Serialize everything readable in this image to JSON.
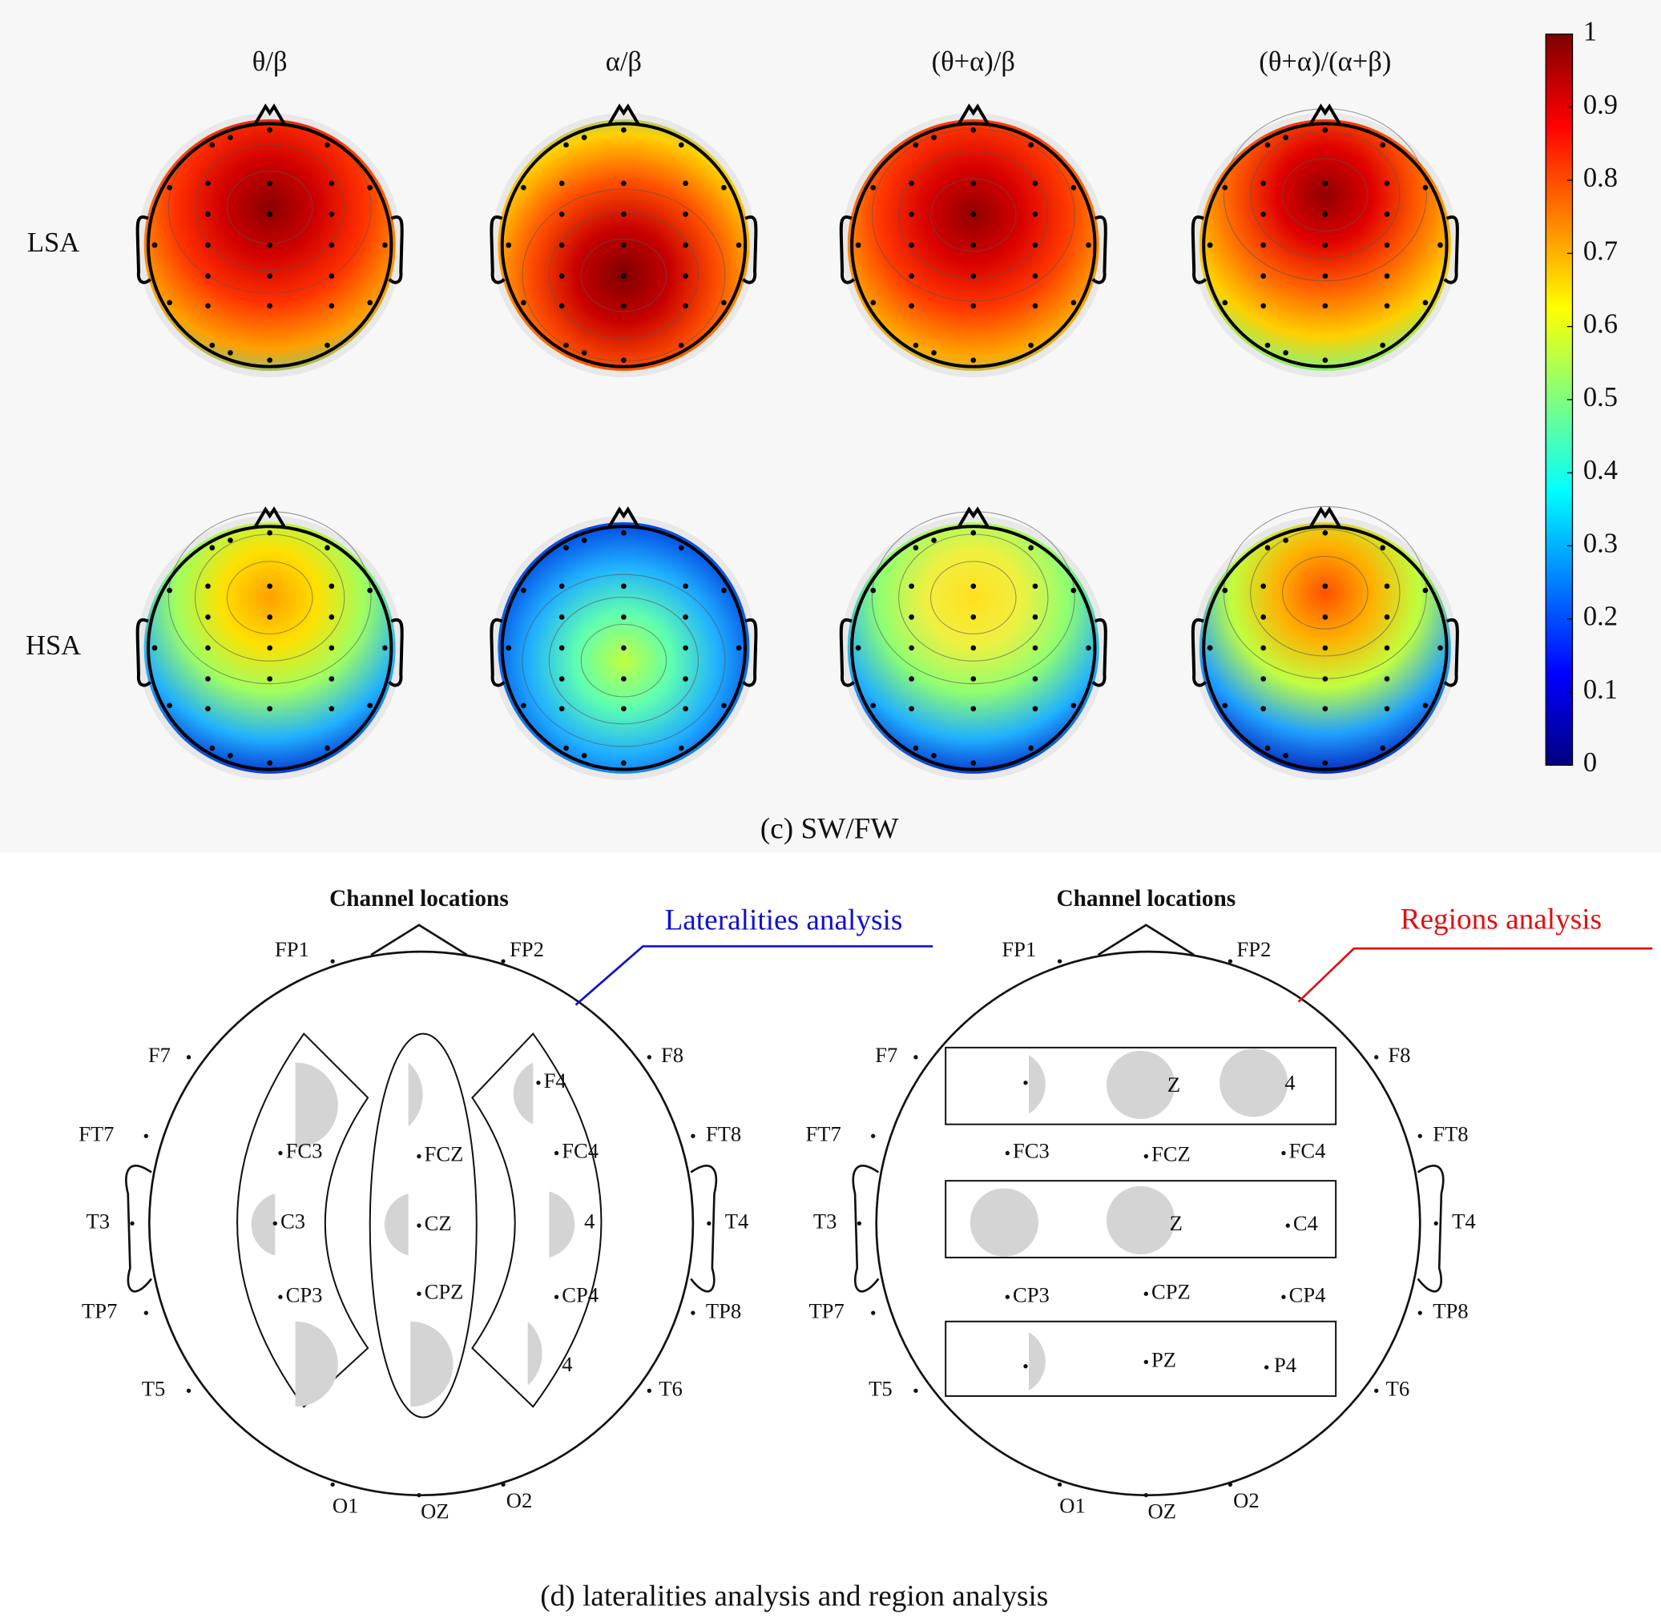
{
  "panel_c": {
    "columns": [
      "θ/β",
      "α/β",
      "(θ+α)/β",
      "(θ+α)/(α+β)"
    ],
    "rows": [
      "LSA",
      "HSA"
    ],
    "colorbar": {
      "clim": [
        0,
        1
      ],
      "ticks": [
        0,
        0.1,
        0.2,
        0.3,
        0.4,
        0.5,
        0.6,
        0.7,
        0.8,
        0.9,
        1
      ]
    },
    "caption": "(c)  SW/FW"
  },
  "panel_d": {
    "left": {
      "title": "Channel locations",
      "annotation": "Lateralities analysis",
      "channels": [
        "FP1",
        "FP2",
        "F7",
        "F8",
        "FT7",
        "FT8",
        "T3",
        "T4",
        "TP7",
        "TP8",
        "T5",
        "T6",
        "O1",
        "OZ",
        "O2",
        "FC3",
        "FCZ",
        "FC4",
        "C3",
        "CZ",
        "CP3",
        "CPZ",
        "CP4",
        "F4",
        "4",
        "4"
      ]
    },
    "right": {
      "title": "Channel locations",
      "annotation": "Regions analysis",
      "channels": [
        "FP1",
        "FP2",
        "F7",
        "F8",
        "FT7",
        "FT8",
        "T3",
        "T4",
        "TP7",
        "TP8",
        "T5",
        "T6",
        "O1",
        "OZ",
        "O2",
        "FC3",
        "FCZ",
        "FC4",
        "CP3",
        "CPZ",
        "CP4",
        "Z",
        "4",
        "Z",
        "C4",
        "PZ",
        "P4"
      ]
    },
    "caption": "(d) lateralities analysis and region analysis"
  }
}
